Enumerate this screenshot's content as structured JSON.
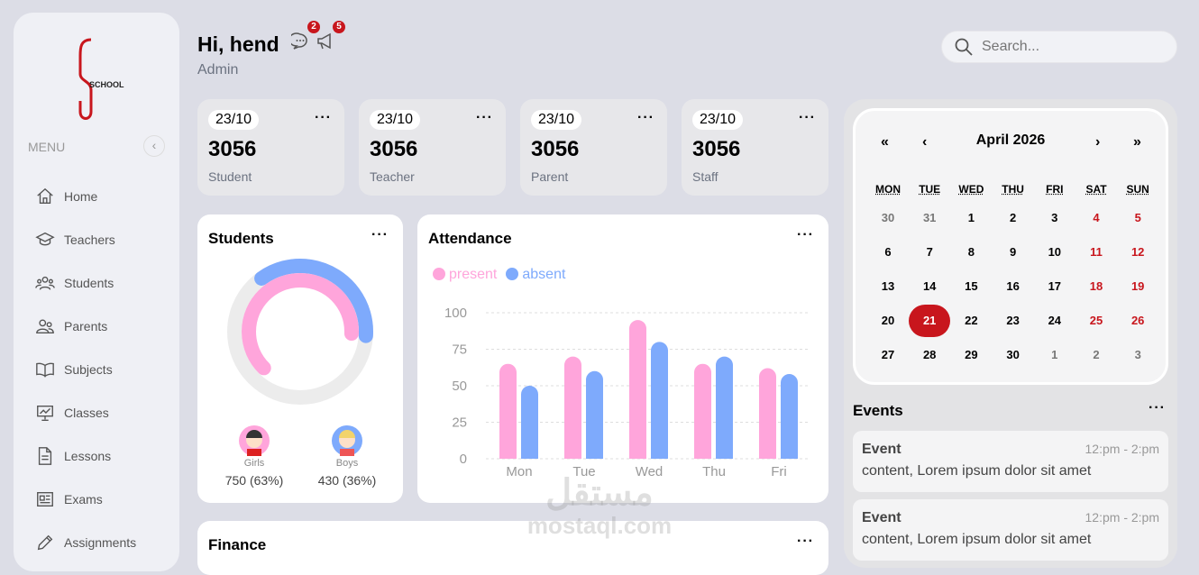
{
  "sidebar": {
    "logo_text": "SCHOOL",
    "menu_label": "MENU",
    "items": [
      {
        "label": "Home",
        "icon": "home-icon"
      },
      {
        "label": "Teachers",
        "icon": "graduation-cap-icon"
      },
      {
        "label": "Students",
        "icon": "users-icon"
      },
      {
        "label": "Parents",
        "icon": "user-group-icon"
      },
      {
        "label": "Subjects",
        "icon": "book-icon"
      },
      {
        "label": "Classes",
        "icon": "presentation-icon"
      },
      {
        "label": "Lessons",
        "icon": "document-icon"
      },
      {
        "label": "Exams",
        "icon": "newspaper-icon"
      },
      {
        "label": "Assignments",
        "icon": "pencil-icon"
      }
    ]
  },
  "header": {
    "greeting": "Hi, hend",
    "role": "Admin",
    "messages_count": "2",
    "announcements_count": "5",
    "search_placeholder": "Search..."
  },
  "stats": [
    {
      "date": "23/10",
      "value": "3056",
      "label": "Student"
    },
    {
      "date": "23/10",
      "value": "3056",
      "label": "Teacher"
    },
    {
      "date": "23/10",
      "value": "3056",
      "label": "Parent"
    },
    {
      "date": "23/10",
      "value": "3056",
      "label": "Staff"
    }
  ],
  "students": {
    "title": "Students",
    "girls_label": "Girls",
    "girls_value": "750 (63%)",
    "boys_label": "Boys",
    "boys_value": "430 (36%)",
    "girls_fraction": 0.63,
    "boys_fraction": 0.36,
    "colors": {
      "girls": "#ffa5db",
      "boys": "#7eaafc"
    }
  },
  "attendance": {
    "title": "Attendance"
  },
  "chart_data": {
    "type": "bar",
    "categories": [
      "Mon",
      "Tue",
      "Wed",
      "Thu",
      "Fri"
    ],
    "series": [
      {
        "name": "present",
        "values": [
          65,
          70,
          95,
          65,
          62
        ],
        "color": "#ffa5db"
      },
      {
        "name": "absent",
        "values": [
          50,
          60,
          80,
          70,
          58
        ],
        "color": "#7eaafc"
      }
    ],
    "yticks": [
      "0",
      "25",
      "50",
      "75",
      "100"
    ],
    "ylim": [
      0,
      100
    ],
    "grid": true,
    "legend": "top-left"
  },
  "finance": {
    "title": "Finance"
  },
  "calendar": {
    "title": "April 2026",
    "prev2": "«",
    "prev": "‹",
    "next": "›",
    "next2": "»",
    "weekdays": [
      "MON",
      "TUE",
      "WED",
      "THU",
      "FRI",
      "SAT",
      "SUN"
    ],
    "days": [
      "30",
      "31",
      "1",
      "2",
      "3",
      "4",
      "5",
      "6",
      "7",
      "8",
      "9",
      "10",
      "11",
      "12",
      "13",
      "14",
      "15",
      "16",
      "17",
      "18",
      "19",
      "20",
      "21",
      "22",
      "23",
      "24",
      "25",
      "26",
      "27",
      "28",
      "29",
      "30",
      "1",
      "2",
      "3"
    ],
    "selected": "21"
  },
  "events": {
    "title": "Events",
    "items": [
      {
        "title": "Event",
        "time": "12:pm - 2:pm",
        "content": "content, Lorem ipsum dolor sit amet"
      },
      {
        "title": "Event",
        "time": "12:pm - 2:pm",
        "content": "content, Lorem ipsum dolor sit amet"
      }
    ]
  },
  "watermark": {
    "arabic": "مستقل",
    "latin": "mostaql.com"
  }
}
